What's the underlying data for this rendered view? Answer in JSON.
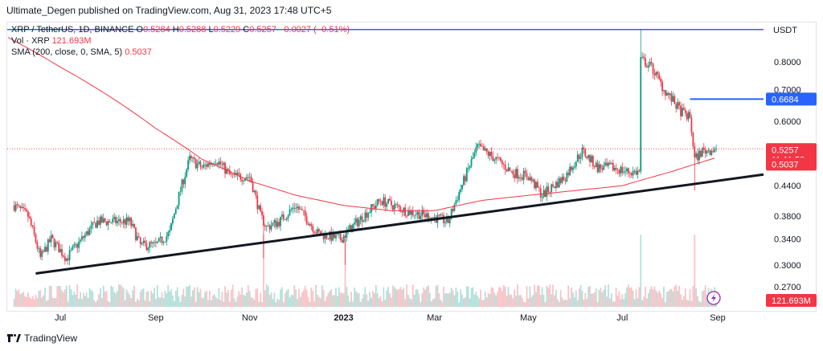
{
  "header": {
    "text": "Ultimate_Degen published on TradingView.com, Aug 31, 2023 17:48 UTC+5"
  },
  "legend": {
    "symbol": "XRP / TetherUS, 1D, BINANCE",
    "o_label": "O",
    "o_value": "0.5284",
    "h_label": "H",
    "h_value": "0.5288",
    "l_label": "L",
    "l_value": "0.5229",
    "c_label": "C",
    "c_value": "0.5257",
    "change": "−0.0027 (−0.51%)",
    "vol_label": "Vol · XRP",
    "vol_value": "121.693M",
    "sma_label": "SMA (200, close, 0, SMA, 5)",
    "sma_value": "0.5037"
  },
  "footer": {
    "brand": "TradingView"
  },
  "colors": {
    "up": "#089981",
    "down": "#f23645",
    "sma": "#f23645",
    "level": "#2962ff",
    "trend": "#131722"
  },
  "chart_data": {
    "type": "candlestick",
    "symbol": "XRP / TetherUS",
    "interval": "1D",
    "exchange": "BINANCE",
    "currency_label": "USDT",
    "y_ticks": [
      "0.8000",
      "0.7000",
      "0.6000",
      "0.4400",
      "0.3800",
      "0.3400",
      "0.3000",
      "0.2700"
    ],
    "y_tick_values": [
      0.8,
      0.7,
      0.6,
      0.44,
      0.38,
      0.34,
      0.3,
      0.27
    ],
    "x_ticks": [
      "Jul",
      "Sep",
      "Nov",
      "2023",
      "Mar",
      "May",
      "Jul",
      "Sep"
    ],
    "x_tick_dates": [
      "2022-07-01",
      "2022-09-01",
      "2022-11-01",
      "2023-01-01",
      "2023-03-01",
      "2023-05-01",
      "2023-07-01",
      "2023-09-01"
    ],
    "last_close": {
      "value": 0.5257,
      "label": "0.5257",
      "countdown": "11:11:53"
    },
    "sma200": {
      "value": 0.5037,
      "label": "0.5037"
    },
    "resistance": {
      "value": 0.6684,
      "label": "0.6684",
      "from": "2023-08-14",
      "to": "2023-09-04"
    },
    "top_line": {
      "value": 0.935,
      "from": "2022-05-28",
      "to": "2023-09-04"
    },
    "trendline": {
      "points": [
        [
          "2022-06-15",
          0.288
        ],
        [
          "2023-09-04",
          0.452
        ]
      ]
    },
    "volume_last": "121.693M",
    "price_anchors": [
      [
        "2022-06-01",
        0.4
      ],
      [
        "2022-06-10",
        0.38
      ],
      [
        "2022-06-18",
        0.31
      ],
      [
        "2022-06-25",
        0.34
      ],
      [
        "2022-07-05",
        0.31
      ],
      [
        "2022-07-15",
        0.34
      ],
      [
        "2022-07-25",
        0.37
      ],
      [
        "2022-08-05",
        0.37
      ],
      [
        "2022-08-15",
        0.37
      ],
      [
        "2022-08-22",
        0.33
      ],
      [
        "2022-09-01",
        0.33
      ],
      [
        "2022-09-10",
        0.35
      ],
      [
        "2022-09-23",
        0.5
      ],
      [
        "2022-10-01",
        0.48
      ],
      [
        "2022-10-10",
        0.5
      ],
      [
        "2022-10-20",
        0.46
      ],
      [
        "2022-11-01",
        0.46
      ],
      [
        "2022-11-08",
        0.38
      ],
      [
        "2022-11-12",
        0.36
      ],
      [
        "2022-11-20",
        0.37
      ],
      [
        "2022-12-01",
        0.4
      ],
      [
        "2022-12-15",
        0.35
      ],
      [
        "2022-12-30",
        0.34
      ],
      [
        "2023-01-10",
        0.37
      ],
      [
        "2023-01-25",
        0.41
      ],
      [
        "2023-02-10",
        0.39
      ],
      [
        "2023-02-25",
        0.38
      ],
      [
        "2023-03-10",
        0.37
      ],
      [
        "2023-03-20",
        0.45
      ],
      [
        "2023-03-29",
        0.53
      ],
      [
        "2023-04-10",
        0.5
      ],
      [
        "2023-04-20",
        0.47
      ],
      [
        "2023-05-01",
        0.46
      ],
      [
        "2023-05-10",
        0.42
      ],
      [
        "2023-05-25",
        0.46
      ],
      [
        "2023-06-05",
        0.52
      ],
      [
        "2023-06-15",
        0.48
      ],
      [
        "2023-06-25",
        0.48
      ],
      [
        "2023-07-05",
        0.47
      ],
      [
        "2023-07-12",
        0.47
      ],
      [
        "2023-07-13",
        0.81
      ],
      [
        "2023-07-20",
        0.78
      ],
      [
        "2023-07-28",
        0.7
      ],
      [
        "2023-08-08",
        0.63
      ],
      [
        "2023-08-14",
        0.61
      ],
      [
        "2023-08-17",
        0.5
      ],
      [
        "2023-08-22",
        0.52
      ],
      [
        "2023-08-31",
        0.5257
      ]
    ],
    "sma_anchors": [
      [
        "2022-05-28",
        0.9
      ],
      [
        "2022-07-01",
        0.78
      ],
      [
        "2022-08-01",
        0.68
      ],
      [
        "2022-09-01",
        0.58
      ],
      [
        "2022-10-01",
        0.5
      ],
      [
        "2022-11-01",
        0.45
      ],
      [
        "2022-12-01",
        0.42
      ],
      [
        "2023-01-01",
        0.4
      ],
      [
        "2023-02-01",
        0.39
      ],
      [
        "2023-03-01",
        0.39
      ],
      [
        "2023-04-01",
        0.41
      ],
      [
        "2023-05-01",
        0.42
      ],
      [
        "2023-06-01",
        0.43
      ],
      [
        "2023-07-01",
        0.44
      ],
      [
        "2023-08-01",
        0.47
      ],
      [
        "2023-08-31",
        0.5037
      ]
    ]
  }
}
